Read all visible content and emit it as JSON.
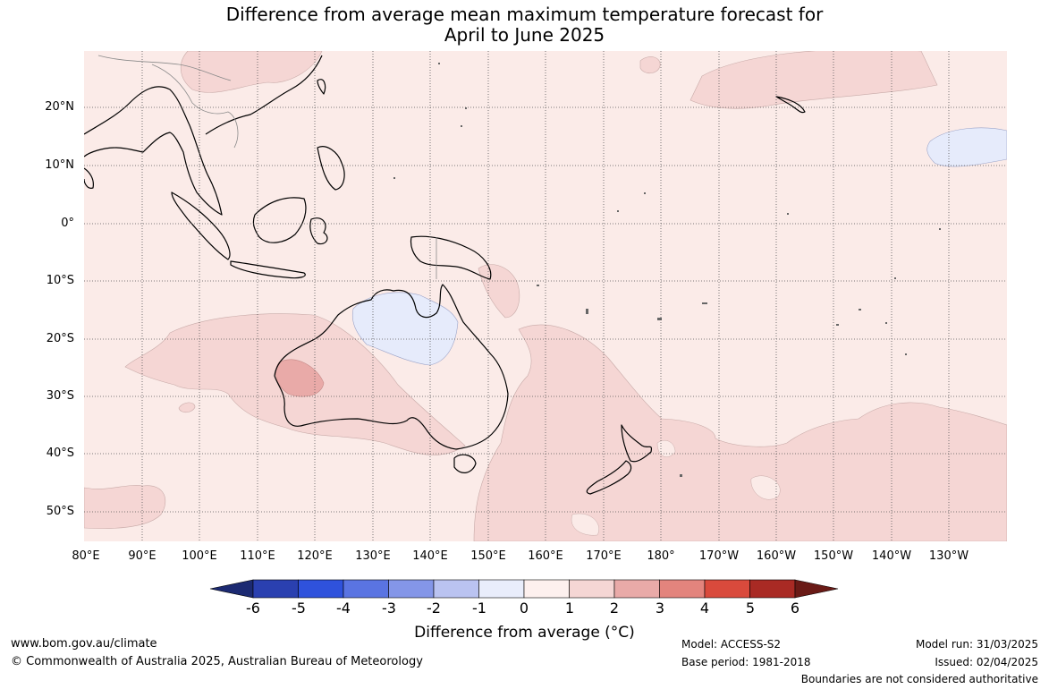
{
  "title": {
    "line1": "Difference from average mean maximum temperature forecast for",
    "line2": "April to June 2025"
  },
  "map": {
    "lat_labels": [
      "20°N",
      "10°N",
      "0°",
      "10°S",
      "20°S",
      "30°S",
      "40°S",
      "50°S"
    ],
    "lon_labels": [
      "80°E",
      "90°E",
      "100°E",
      "110°E",
      "120°E",
      "130°E",
      "140°E",
      "150°E",
      "160°E",
      "170°E",
      "180°",
      "170°W",
      "160°W",
      "150°W",
      "140°W",
      "130°W"
    ],
    "colors": {
      "anomaly_0_to_1": "#fbebe8",
      "anomaly_1_to_2": "#f5d6d4",
      "anomaly_2_to_3": "#e9aaa8",
      "anomaly_minus1_to_0": "#e6ebfb",
      "coastline": "#000000",
      "boundary": "#8a8a8a",
      "grid": "#555555"
    }
  },
  "colorbar": {
    "ticks": [
      "-6",
      "-5",
      "-4",
      "-3",
      "-2",
      "-1",
      "0",
      "1",
      "2",
      "3",
      "4",
      "5",
      "6"
    ],
    "colors": [
      "#1c2a72",
      "#2a40b0",
      "#2f52dc",
      "#5a74e2",
      "#8496e8",
      "#bac3f1",
      "#e9edfb",
      "#fdf0ee",
      "#f5d6d4",
      "#e9aaa8",
      "#e3847d",
      "#d94a3c",
      "#a92a24",
      "#6a1a16"
    ],
    "label": "Difference from average (°C)"
  },
  "footer": {
    "website": "www.bom.gov.au/climate",
    "copyright": "© Commonwealth of Australia 2025, Australian Bureau of Meteorology",
    "model": "Model: ACCESS-S2",
    "base_period": "Base period: 1981-2018",
    "model_run": "Model run: 31/03/2025",
    "issued": "Issued: 02/04/2025",
    "disclaimer": "Boundaries are not considered authoritative"
  }
}
